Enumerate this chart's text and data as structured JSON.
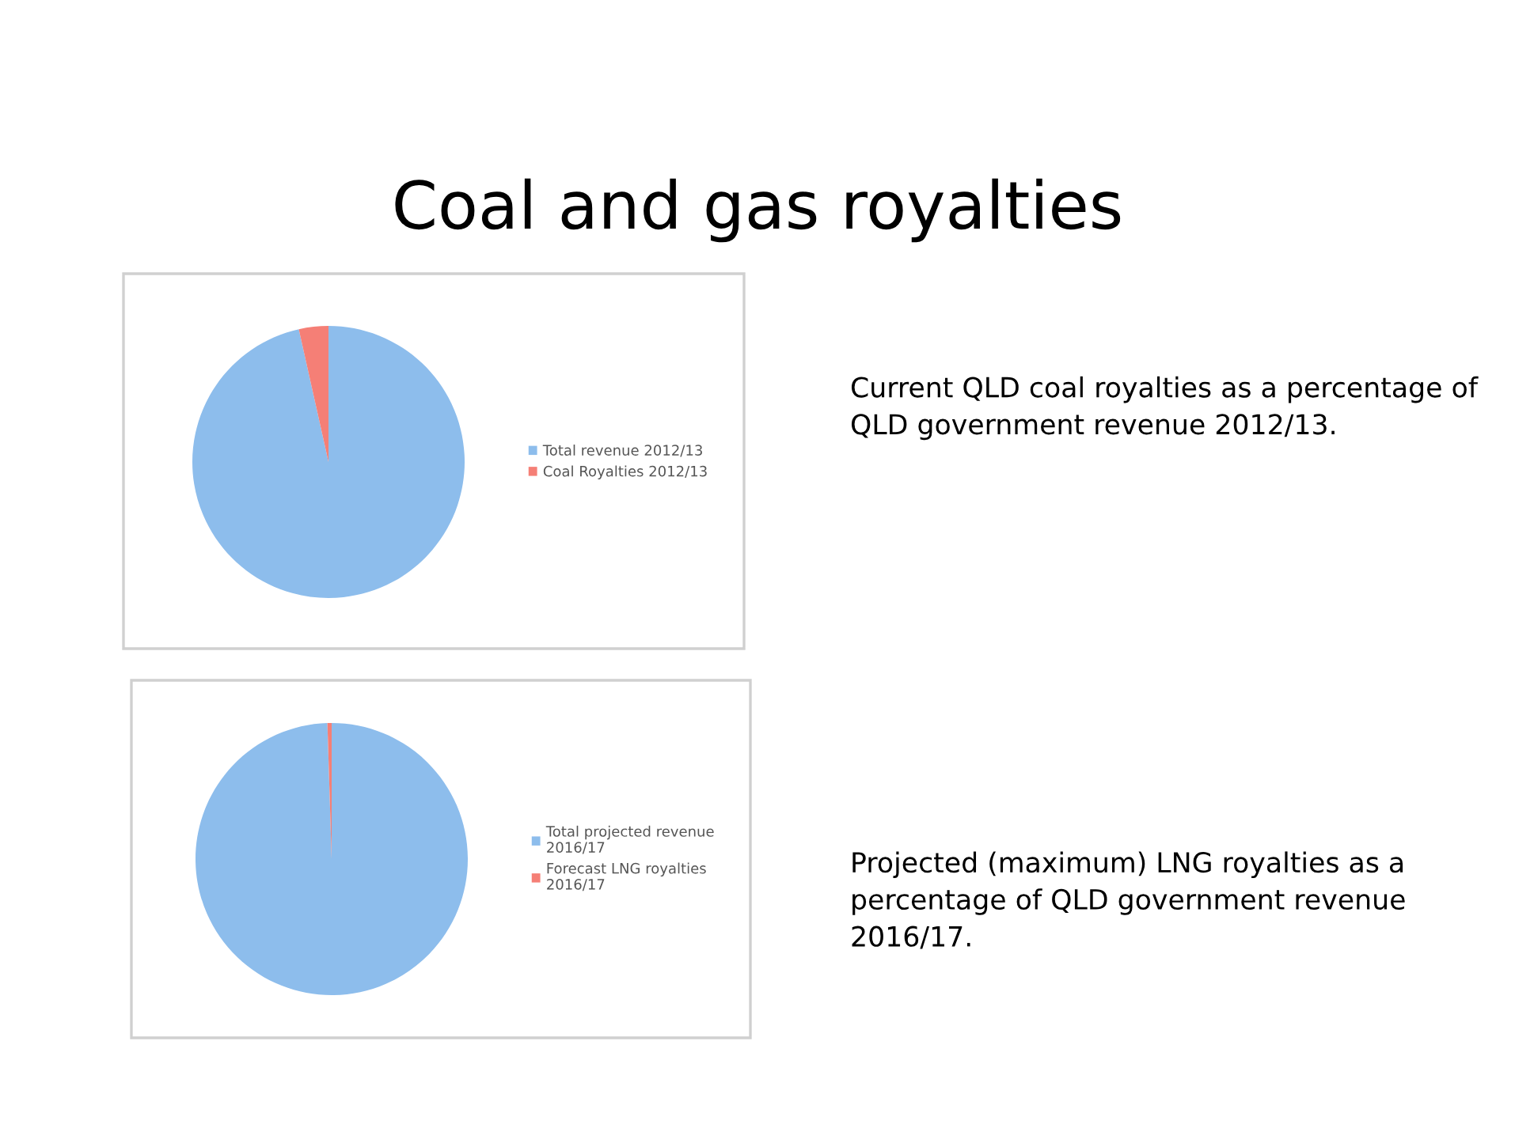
{
  "chart_data": [
    {
      "type": "pie",
      "title": "Coal and gas royalties",
      "categories": [
        "Total revenue 2012/13",
        "Coal Royalties 2012/13"
      ],
      "values": [
        96.5,
        3.5
      ],
      "colors": [
        "#8dbdec",
        "#f57f76"
      ],
      "legend": "right",
      "annotations": [
        "Current QLD coal royalties as a percentage of QLD government revenue 2012/13."
      ]
    },
    {
      "type": "pie",
      "categories": [
        "Total projected revenue 2016/17",
        "Forecast LNG royalties 2016/17"
      ],
      "values": [
        99.5,
        0.5
      ],
      "colors": [
        "#8dbdec",
        "#f57f76"
      ],
      "legend": "right",
      "annotations": [
        "Projected (maximum) LNG royalties as a percentage of QLD government revenue 2016/17."
      ]
    }
  ]
}
